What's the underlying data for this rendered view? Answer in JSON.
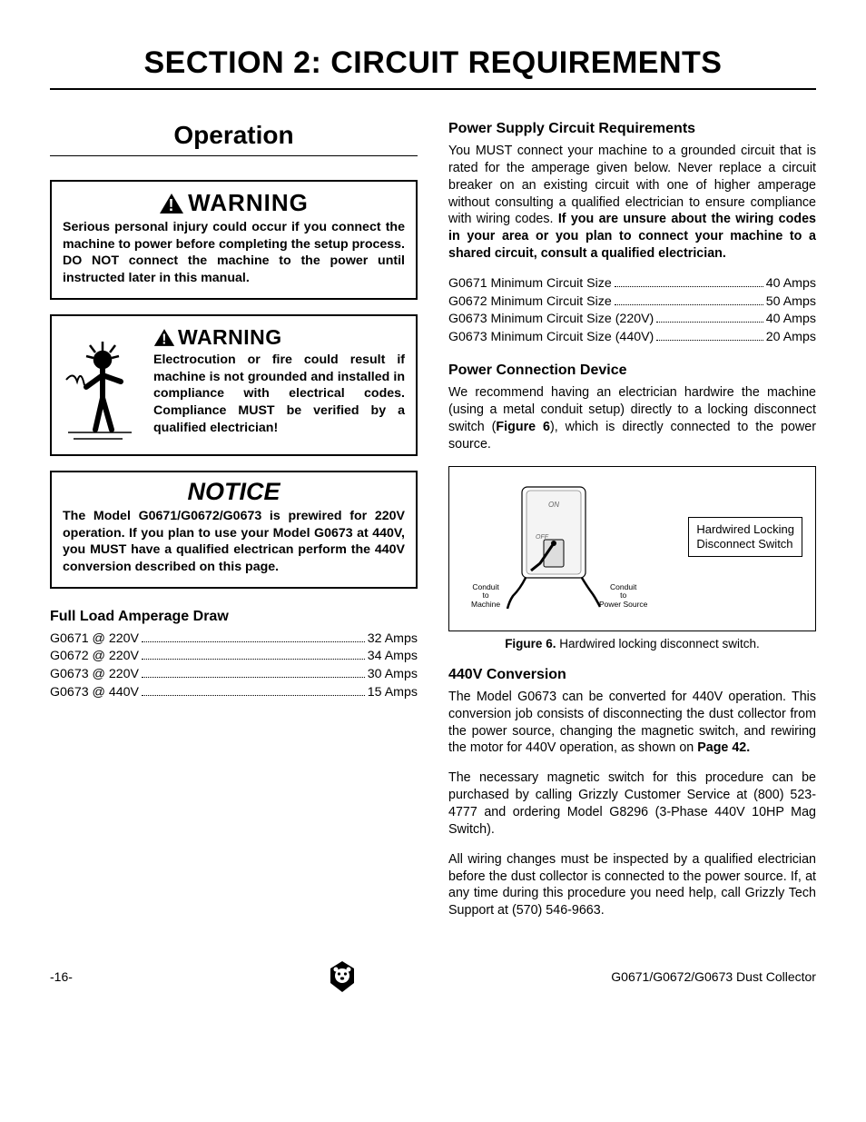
{
  "section_title": "SECTION 2: CIRCUIT REQUIREMENTS",
  "operation_title": "Operation",
  "warning1": {
    "header": "WARNING",
    "body": "Serious personal injury could occur if you connect the machine to power before completing the setup process. DO NOT connect the machine to the power until instructed later in this manual."
  },
  "warning2": {
    "header": "WARNING",
    "body": "Electrocution or fire could result if machine is not grounded and installed in compliance with electrical codes. Compliance MUST be verified by a qualified electrician!"
  },
  "notice": {
    "header": "NOTICE",
    "body": "The Model G0671/G0672/G0673 is prewired for 220V operation. If you plan to use your Model G0673 at 440V, you MUST have a qualified electrican perform the 440V conversion described on this page."
  },
  "full_load": {
    "heading": "Full Load Amperage Draw",
    "rows": [
      {
        "label": "G0671 @ 220V",
        "value": "32 Amps"
      },
      {
        "label": "G0672 @ 220V",
        "value": "34 Amps"
      },
      {
        "label": "G0673 @ 220V",
        "value": "30 Amps"
      },
      {
        "label": "G0673 @ 440V",
        "value": "15 Amps"
      }
    ]
  },
  "psc": {
    "heading": "Power Supply Circuit Requirements",
    "body_pre": "You MUST connect your machine to a grounded circuit that is rated for the amperage given below. Never replace a circuit breaker on an existing circuit with one of higher amperage without consulting a qualified electrician to ensure compliance with wiring codes. ",
    "body_bold": "If you are unsure about the wiring codes in your area or you plan to connect your machine to a shared circuit, consult a qualified electrician.",
    "rows": [
      {
        "label": "G0671 Minimum Circuit Size",
        "value": "40 Amps"
      },
      {
        "label": "G0672 Minimum Circuit Size",
        "value": "50 Amps"
      },
      {
        "label": "G0673 Minimum Circuit Size (220V)",
        "value": "40 Amps"
      },
      {
        "label": "G0673 Minimum Circuit Size (440V)",
        "value": "20 Amps"
      }
    ]
  },
  "pcd": {
    "heading": "Power Connection Device",
    "body_pre": "We recommend having an electrician hardwire the machine (using a metal conduit setup) directly to a locking disconnect switch (",
    "body_bold": "Figure 6",
    "body_post": "), which is directly connected to the power source."
  },
  "figure6": {
    "callout": "Hardwired Locking\nDisconnect Switch",
    "anno_left": "Conduit\nto\nMachine",
    "anno_right": "Conduit\nto\nPower Source",
    "caption_bold": "Figure 6.",
    "caption_rest": " Hardwired locking disconnect switch."
  },
  "conv440": {
    "heading": "440V Conversion",
    "p1_pre": "The Model G0673 can be converted for 440V operation. This conversion job consists of disconnecting the dust collector from the power source, changing the magnetic switch, and rewiring the motor for 440V operation, as shown on ",
    "p1_bold": "Page 42.",
    "p2": "The necessary magnetic switch for this procedure can be purchased by calling Grizzly Customer Service at (800) 523-4777 and ordering Model G8296 (3-Phase 440V 10HP Mag Switch).",
    "p3": "All wiring changes must be inspected by a qualified electrician before the dust collector is connected to the power source. If, at any time during this procedure you need help, call Grizzly Tech Support at (570) 546-9663."
  },
  "footer": {
    "page": "-16-",
    "product": "G0671/G0672/G0673 Dust Collector"
  },
  "colors": {
    "text": "#000000",
    "background": "#ffffff",
    "border": "#000000"
  }
}
